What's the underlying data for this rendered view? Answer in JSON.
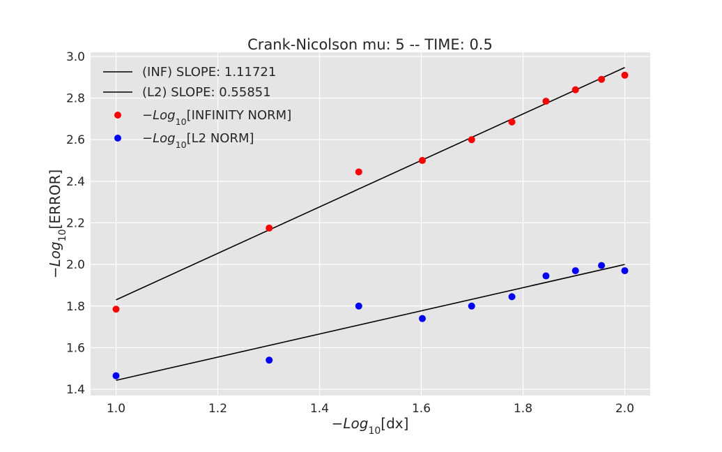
{
  "chart_data": {
    "type": "scatter",
    "title": "Crank-Nicolson mu: 5 -- TIME: 0.5",
    "xlabel": {
      "prefix": "−",
      "italic": "Log",
      "sub": "10",
      "suffix": "[dx]"
    },
    "ylabel": {
      "prefix": "−",
      "italic": "Log",
      "sub": "10",
      "suffix": "[ERROR]"
    },
    "xlim": [
      0.95,
      2.05
    ],
    "ylim": [
      1.37,
      3.02
    ],
    "xticks": [
      1.0,
      1.2,
      1.4,
      1.6,
      1.8,
      2.0
    ],
    "yticks": [
      1.4,
      1.6,
      1.8,
      2.0,
      2.2,
      2.4,
      2.6,
      2.8,
      3.0
    ],
    "grid": true,
    "legend_position": "top-left",
    "x": [
      1.0,
      1.30103,
      1.47712,
      1.60206,
      1.69897,
      1.77815,
      1.8451,
      1.90309,
      1.95424,
      2.0
    ],
    "series": [
      {
        "name": "(INF) SLOPE: 1.11721",
        "kind": "line",
        "color": "#000000",
        "endpoints": [
          [
            1.0,
            1.83
          ],
          [
            2.0,
            2.947
          ]
        ]
      },
      {
        "name": "(L2)  SLOPE: 0.55851",
        "kind": "line",
        "color": "#000000",
        "endpoints": [
          [
            1.0,
            1.443
          ],
          [
            2.0,
            2.0
          ]
        ]
      },
      {
        "name": {
          "prefix": "−",
          "italic": "Log",
          "sub": "10",
          "suffix": "[INFINITY NORM]"
        },
        "kind": "scatter",
        "color": "#ff0000",
        "values": [
          1.785,
          2.175,
          2.445,
          2.5,
          2.6,
          2.685,
          2.785,
          2.84,
          2.89,
          2.91
        ]
      },
      {
        "name": {
          "prefix": "−",
          "italic": "Log",
          "sub": "10",
          "suffix": "[L2 NORM]"
        },
        "kind": "scatter",
        "color": "#0000ff",
        "values": [
          1.465,
          1.54,
          1.8,
          1.74,
          1.8,
          1.845,
          1.945,
          1.97,
          1.995,
          1.97
        ]
      }
    ]
  }
}
